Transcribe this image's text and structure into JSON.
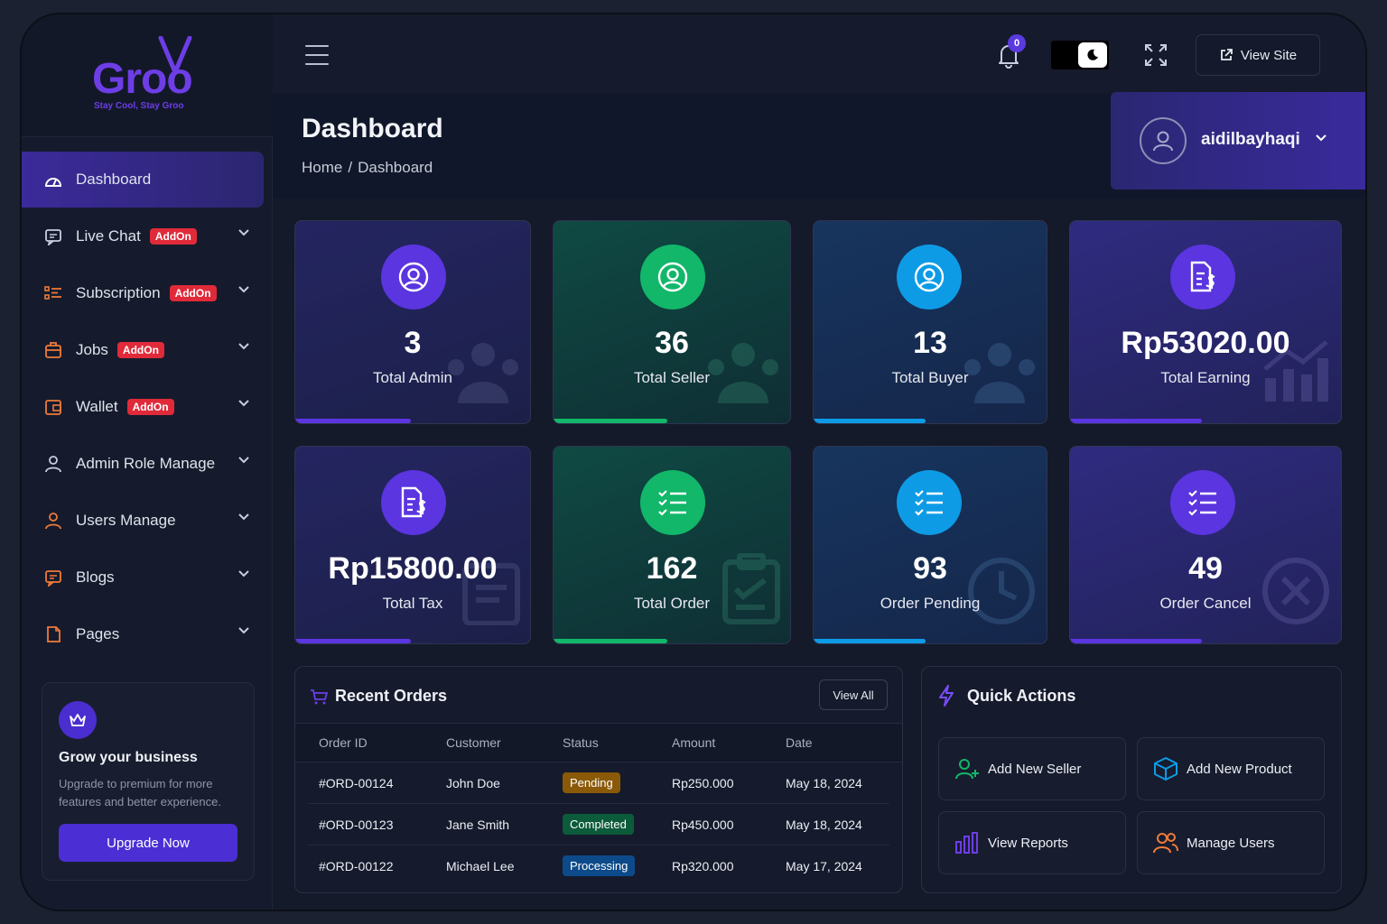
{
  "brand": {
    "name": "Groo",
    "tagline": "Stay Cool, Stay Groo",
    "color": "#6d3ee6"
  },
  "sidebar": {
    "items": [
      {
        "label": "Dashboard",
        "icon": "dashboard-icon",
        "active": true
      },
      {
        "label": "Live Chat",
        "icon": "chat-icon",
        "badge": "AddOn"
      },
      {
        "label": "Subscription",
        "icon": "subscription-icon",
        "badge": "AddOn"
      },
      {
        "label": "Jobs",
        "icon": "briefcase-icon",
        "badge": "AddOn"
      },
      {
        "label": "Wallet",
        "icon": "wallet-icon",
        "badge": "AddOn"
      },
      {
        "label": "Admin Role Manage",
        "icon": "user-icon"
      },
      {
        "label": "Users Manage",
        "icon": "user-icon"
      },
      {
        "label": "Blogs",
        "icon": "blog-icon"
      },
      {
        "label": "Pages",
        "icon": "page-icon"
      }
    ],
    "promo": {
      "title": "Grow your business",
      "text": "Upgrade to premium for more features and better experience.",
      "button": "Upgrade Now"
    }
  },
  "topbar": {
    "notification_count": "0",
    "view_site_label": "View Site"
  },
  "header": {
    "title": "Dashboard",
    "breadcrumb": [
      "Home",
      "/",
      "Dashboard"
    ],
    "user": {
      "name": "aidilbayhaqi"
    }
  },
  "stats": [
    {
      "value": "3",
      "label": "Total Admin",
      "color": "#5b35e0"
    },
    {
      "value": "36",
      "label": "Total Seller",
      "color": "#12b76a"
    },
    {
      "value": "13",
      "label": "Total Buyer",
      "color": "#0e9be6"
    },
    {
      "value": "Rp53020.00",
      "label": "Total Earning",
      "color": "#5b35e0"
    },
    {
      "value": "Rp15800.00",
      "label": "Total Tax",
      "color": "#5b35e0"
    },
    {
      "value": "162",
      "label": "Total Order",
      "color": "#12b76a"
    },
    {
      "value": "93",
      "label": "Order Pending",
      "color": "#0e9be6"
    },
    {
      "value": "49",
      "label": "Order Cancel",
      "color": "#5b35e0"
    }
  ],
  "recent_orders": {
    "title": "Recent Orders",
    "view_all": "View All",
    "columns": [
      "Order ID",
      "Customer",
      "Status",
      "Amount",
      "Date"
    ],
    "rows": [
      {
        "id": "#ORD-00124",
        "customer": "John Doe",
        "status": "Pending",
        "amount": "Rp250.000",
        "date": "May 18, 2024"
      },
      {
        "id": "#ORD-00123",
        "customer": "Jane Smith",
        "status": "Completed",
        "amount": "Rp450.000",
        "date": "May 18, 2024"
      },
      {
        "id": "#ORD-00122",
        "customer": "Michael Lee",
        "status": "Processing",
        "amount": "Rp320.000",
        "date": "May 17, 2024"
      }
    ]
  },
  "quick_actions": {
    "title": "Quick Actions",
    "items": [
      {
        "label": "Add New Seller",
        "icon": "add-user-icon",
        "color": "#12b76a"
      },
      {
        "label": "Add New Product",
        "icon": "box-icon",
        "color": "#0e9be6"
      },
      {
        "label": "View Reports",
        "icon": "bar-chart-icon",
        "color": "#6d3ee6"
      },
      {
        "label": "Manage Users",
        "icon": "users-icon",
        "color": "#f07a3a"
      }
    ]
  }
}
